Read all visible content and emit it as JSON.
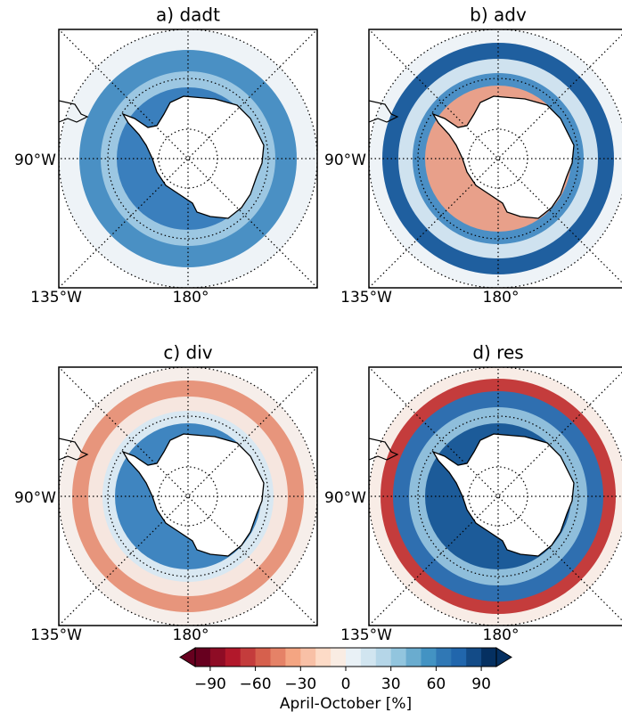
{
  "panels": [
    {
      "title": "a) dadt",
      "left_label": "90°W",
      "bottom_labels": [
        "135°W",
        "180°"
      ]
    },
    {
      "title": "b) adv",
      "left_label": "90°W",
      "bottom_labels": [
        "135°W",
        "180°"
      ]
    },
    {
      "title": "c) div",
      "left_label": "90°W",
      "bottom_labels": [
        "135°W",
        "180°"
      ]
    },
    {
      "title": "d) res",
      "left_label": "90°W",
      "bottom_labels": [
        "135°W",
        "180°"
      ]
    }
  ],
  "colorbar": {
    "label": "April-October [%]",
    "lim": [
      -100,
      100
    ],
    "ticks": [
      {
        "value": -90,
        "label": "−90"
      },
      {
        "value": -60,
        "label": "−60"
      },
      {
        "value": -30,
        "label": "−30"
      },
      0,
      30,
      60,
      90
    ],
    "colors": [
      "#67001f",
      "#8e0c25",
      "#b2182b",
      "#c43c3c",
      "#d6604d",
      "#e58267",
      "#f4a582",
      "#f8c0a6",
      "#fddbc7",
      "#f9ece3",
      "#e9f1f6",
      "#d1e5f0",
      "#b5d6e8",
      "#92c5de",
      "#6aaccf",
      "#4393c3",
      "#3078b5",
      "#2166ac",
      "#134b87",
      "#053061"
    ]
  }
}
